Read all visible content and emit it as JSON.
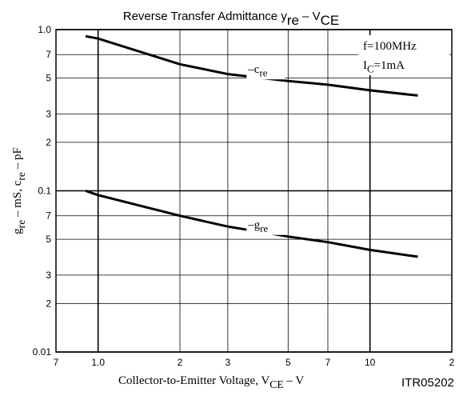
{
  "chart_data": {
    "type": "line",
    "title": [
      "Reverse Transfer Admittance y",
      "re",
      " – V",
      "CE"
    ],
    "xlabel": [
      "Collector-to-Emitter Voltage, V",
      "CE",
      " – V"
    ],
    "ylabel": [
      "g",
      "re",
      " – mS, c",
      "re",
      " – pF"
    ],
    "code": "ITR05202",
    "conditions": {
      "f": "f=100MHz",
      "ic": [
        "I",
        "C",
        "=1mA"
      ]
    },
    "xscale": "log",
    "yscale": "log",
    "grid": true,
    "xlim": [
      0.7,
      20
    ],
    "ylim": [
      0.01,
      1
    ],
    "xticks": [
      {
        "value": 0.7,
        "label": "7"
      },
      {
        "value": 1,
        "label": "1.0"
      },
      2,
      3,
      5,
      7,
      10,
      {
        "value": 20,
        "label": "2"
      }
    ],
    "yticks": [
      0.01,
      {
        "value": 0.02,
        "label": "2"
      },
      {
        "value": 0.03,
        "label": "3"
      },
      {
        "value": 0.05,
        "label": "5"
      },
      {
        "value": 0.07,
        "label": "7"
      },
      0.1,
      {
        "value": 0.2,
        "label": "2"
      },
      {
        "value": 0.3,
        "label": "3"
      },
      {
        "value": 0.5,
        "label": "5"
      },
      {
        "value": 0.7,
        "label": "7"
      },
      {
        "value": 1,
        "label": "1.0"
      }
    ],
    "series": [
      {
        "label": [
          "–c",
          "re"
        ],
        "color": "#000000",
        "x": [
          0.9,
          1,
          2,
          3,
          5,
          7,
          10,
          15
        ],
        "values": [
          0.91,
          0.88,
          0.61,
          0.53,
          0.48,
          0.455,
          0.42,
          0.39
        ]
      },
      {
        "label": [
          "–g",
          "re"
        ],
        "color": "#000000",
        "x": [
          0.9,
          1,
          2,
          3,
          5,
          7,
          10,
          15
        ],
        "values": [
          0.1,
          0.094,
          0.07,
          0.06,
          0.052,
          0.048,
          0.043,
          0.039
        ]
      }
    ]
  }
}
